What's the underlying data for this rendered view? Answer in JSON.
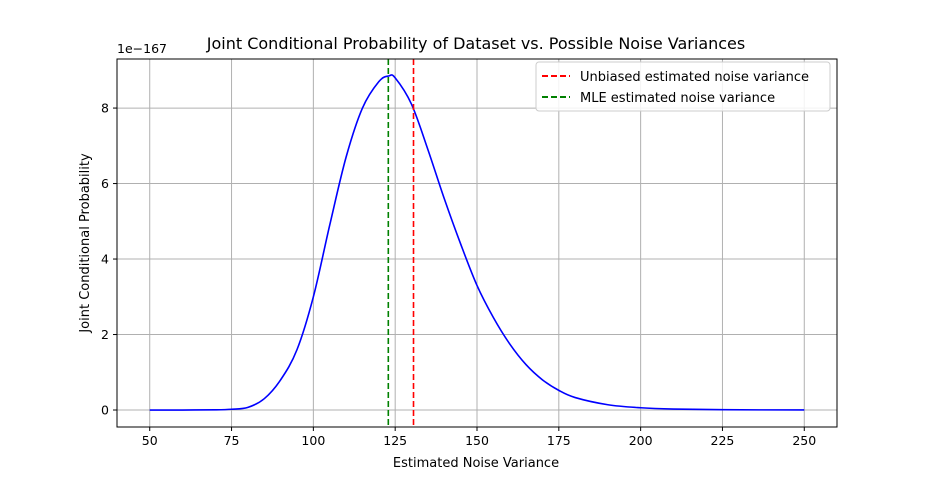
{
  "chart_data": {
    "type": "line",
    "title": "Joint Conditional Probability of Dataset vs. Possible Noise Variances",
    "xlabel": "Estimated Noise Variance",
    "ylabel": "Joint Conditional Probability",
    "y_offset_label": "1e−167",
    "xlim": [
      40,
      260
    ],
    "ylim": [
      -0.45,
      9.3
    ],
    "x_ticks": [
      50,
      75,
      100,
      125,
      150,
      175,
      200,
      225,
      250
    ],
    "y_ticks": [
      0,
      2,
      4,
      6,
      8
    ],
    "grid": true,
    "legend_position": "top-right",
    "series": [
      {
        "color": "#0000ff",
        "x": [
          50,
          60,
          70,
          75,
          80,
          85,
          90,
          95,
          100,
          105,
          110,
          115,
          120,
          123,
          125,
          130,
          135,
          140,
          145,
          150,
          155,
          160,
          165,
          170,
          175,
          180,
          190,
          200,
          210,
          225,
          250
        ],
        "y": [
          0.0,
          0.0,
          0.005,
          0.02,
          0.07,
          0.3,
          0.8,
          1.6,
          3.0,
          4.9,
          6.7,
          8.0,
          8.7,
          8.85,
          8.8,
          8.1,
          6.9,
          5.6,
          4.4,
          3.3,
          2.45,
          1.75,
          1.2,
          0.8,
          0.52,
          0.33,
          0.14,
          0.06,
          0.025,
          0.008,
          0.001
        ]
      }
    ],
    "vlines": [
      {
        "name": "Unbiased estimated noise variance",
        "x": 130.6,
        "color": "#ff0000",
        "style": "dashed"
      },
      {
        "name": "MLE estimated noise variance",
        "x": 122.9,
        "color": "#008000",
        "style": "dashed"
      }
    ]
  }
}
